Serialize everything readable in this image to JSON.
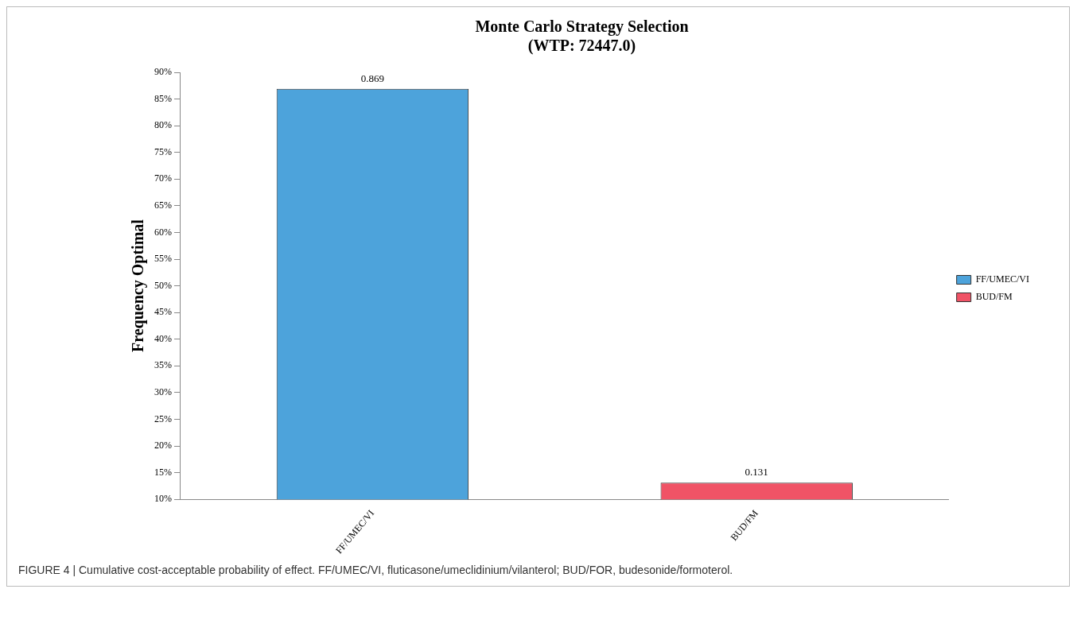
{
  "chart_data": {
    "type": "bar",
    "title": "Monte Carlo Strategy Selection",
    "subtitle": "(WTP: 72447.0)",
    "ylabel": "Frequency Optimal",
    "categories": [
      "FF/UMEC/VI",
      "BUD/FM"
    ],
    "series": [
      {
        "name": "FF/UMEC/VI",
        "color": "#4da3db",
        "values": [
          0.869,
          null
        ]
      },
      {
        "name": "BUD/FM",
        "color": "#f05366",
        "values": [
          null,
          0.131
        ]
      }
    ],
    "data_labels": true,
    "ylim": [
      0.1,
      0.9
    ],
    "yticks": [
      {
        "value": 0.1,
        "label": "10%"
      },
      {
        "value": 0.15,
        "label": "15%"
      },
      {
        "value": 0.2,
        "label": "20%"
      },
      {
        "value": 0.25,
        "label": "25%"
      },
      {
        "value": 0.3,
        "label": "30%"
      },
      {
        "value": 0.35,
        "label": "35%"
      },
      {
        "value": 0.4,
        "label": "40%"
      },
      {
        "value": 0.45,
        "label": "45%"
      },
      {
        "value": 0.5,
        "label": "50%"
      },
      {
        "value": 0.55,
        "label": "55%"
      },
      {
        "value": 0.6,
        "label": "60%"
      },
      {
        "value": 0.65,
        "label": "65%"
      },
      {
        "value": 0.7,
        "label": "70%"
      },
      {
        "value": 0.75,
        "label": "75%"
      },
      {
        "value": 0.8,
        "label": "80%"
      },
      {
        "value": 0.85,
        "label": "85%"
      },
      {
        "value": 0.9,
        "label": "90%"
      }
    ],
    "grid": false,
    "legend": "right",
    "annotations": [
      "FIGURE 4 | Cumulative cost-acceptable probability of effect. FF/UMEC/VI, fluticasone/umeclidinium/vilanterol; BUD/FOR, budesonide/formoterol."
    ]
  }
}
